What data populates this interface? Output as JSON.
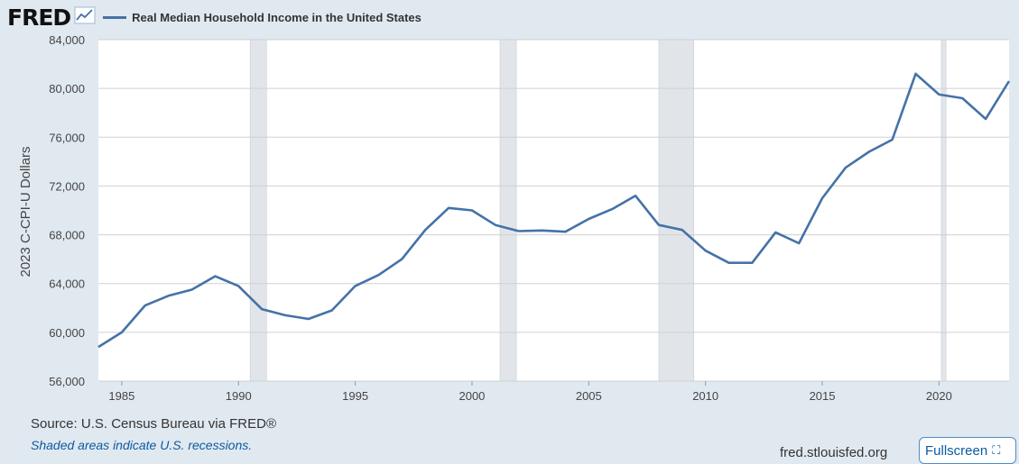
{
  "header": {
    "logo_text": "FRED",
    "logo_icon": "trend-line-icon",
    "series_title": "Real Median Household Income in the United States"
  },
  "colors": {
    "background": "#e1e9f0",
    "line": "#4572a7",
    "recession": "#e1e5ea",
    "grid": "#d0d0d0",
    "link": "#0b5aa2"
  },
  "chart_data": {
    "type": "line",
    "title": "Real Median Household Income in the United States",
    "ylabel": "2023 C-CPI-U Dollars",
    "xlabel": "",
    "ylim": [
      56000,
      84000
    ],
    "xlim": [
      1984,
      2023
    ],
    "y_ticks": [
      56000,
      60000,
      64000,
      68000,
      72000,
      76000,
      80000,
      84000
    ],
    "y_tick_labels": [
      "56,000",
      "60,000",
      "64,000",
      "68,000",
      "72,000",
      "76,000",
      "80,000",
      "84,000"
    ],
    "x_ticks": [
      1985,
      1990,
      1995,
      2000,
      2005,
      2010,
      2015,
      2020
    ],
    "grid": "horizontal",
    "legend": "top-left",
    "recessions": [
      {
        "start": 1990.5,
        "end": 1991.2
      },
      {
        "start": 2001.2,
        "end": 2001.9
      },
      {
        "start": 2008.0,
        "end": 2009.5
      },
      {
        "start": 2020.1,
        "end": 2020.3
      }
    ],
    "series": [
      {
        "name": "Real Median Household Income in the United States",
        "x": [
          1984,
          1985,
          1986,
          1987,
          1988,
          1989,
          1990,
          1991,
          1992,
          1993,
          1994,
          1995,
          1996,
          1997,
          1998,
          1999,
          2000,
          2001,
          2002,
          2003,
          2004,
          2005,
          2006,
          2007,
          2008,
          2009,
          2010,
          2011,
          2012,
          2013,
          2014,
          2015,
          2016,
          2017,
          2018,
          2019,
          2020,
          2021,
          2022,
          2023
        ],
        "values": [
          58800,
          60000,
          62200,
          63000,
          63500,
          64600,
          63800,
          61900,
          61400,
          61100,
          61800,
          63800,
          64700,
          66000,
          68400,
          70200,
          70000,
          68800,
          68300,
          68350,
          68250,
          69300,
          70100,
          71200,
          68800,
          68400,
          66700,
          65700,
          65700,
          68200,
          67300,
          71000,
          73500,
          74800,
          75800,
          81200,
          79500,
          79200,
          77500,
          80600
        ]
      }
    ]
  },
  "footer": {
    "source": "Source: U.S. Census Bureau via FRED®",
    "note": "Shaded areas indicate U.S. recessions.",
    "site": "fred.stlouisfed.org",
    "fullscreen_label": "Fullscreen",
    "fullscreen_icon": "expand-corners-icon"
  }
}
